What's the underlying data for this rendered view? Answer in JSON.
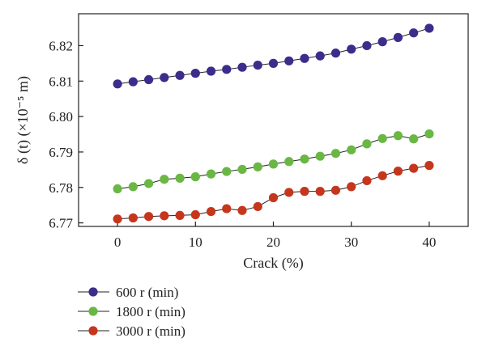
{
  "chart_data": {
    "type": "line",
    "title": "",
    "xlabel": "Crack (%)",
    "ylabel": "δ (t) (×10⁻⁵ m)",
    "xlim": [
      -5,
      45
    ],
    "ylim": [
      6.769,
      6.829
    ],
    "xticks": [
      0,
      10,
      20,
      30,
      40
    ],
    "yticks": [
      6.77,
      6.78,
      6.79,
      6.8,
      6.81,
      6.82
    ],
    "x_tick_labels": [
      "0",
      "10",
      "20",
      "30",
      "40"
    ],
    "y_tick_labels": [
      "6.77",
      "6.78",
      "6.79",
      "6.80",
      "6.81",
      "6.82"
    ],
    "grid": false,
    "legend_position": "below",
    "x": [
      0,
      2,
      4,
      6,
      8,
      10,
      12,
      14,
      16,
      18,
      20,
      22,
      24,
      26,
      28,
      30,
      32,
      34,
      36,
      38,
      40
    ],
    "series": [
      {
        "name": "600 r (min)",
        "color": "#3b2d8c",
        "values": [
          6.8092,
          6.8098,
          6.8104,
          6.811,
          6.8116,
          6.8122,
          6.8128,
          6.8133,
          6.8139,
          6.8145,
          6.815,
          6.8157,
          6.8164,
          6.8171,
          6.8179,
          6.819,
          6.82,
          6.8211,
          6.8223,
          6.8236,
          6.8249
        ]
      },
      {
        "name": "1800 r (min)",
        "color": "#6ab744",
        "values": [
          6.7796,
          6.7802,
          6.7811,
          6.7823,
          6.7826,
          6.783,
          6.7838,
          6.7845,
          6.7851,
          6.7858,
          6.7866,
          6.7873,
          6.788,
          6.7888,
          6.7896,
          6.7906,
          6.7923,
          6.7938,
          6.7946,
          6.7937,
          6.7951
        ]
      },
      {
        "name": "3000 r (min)",
        "color": "#c6361c",
        "values": [
          6.7711,
          6.7714,
          6.7718,
          6.772,
          6.7721,
          6.7723,
          6.7732,
          6.774,
          6.7735,
          6.7746,
          6.7771,
          6.7786,
          6.7789,
          6.7789,
          6.7792,
          6.7802,
          6.7819,
          6.7833,
          6.7846,
          6.7854,
          6.7862
        ]
      }
    ]
  }
}
